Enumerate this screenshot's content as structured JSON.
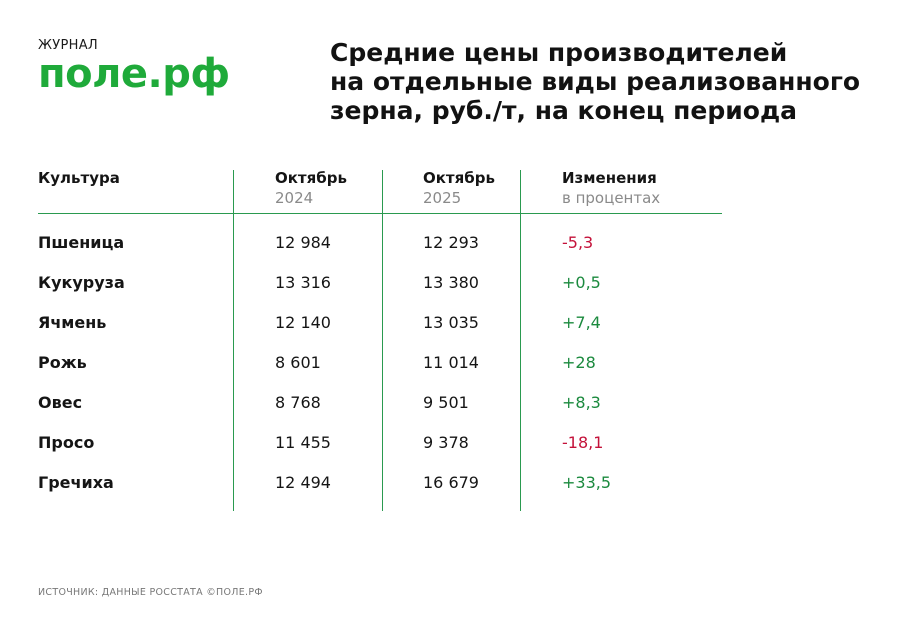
{
  "logo": {
    "small": "ЖУРНАЛ",
    "main": "поле.рф"
  },
  "title": "Средние цены производителей\nна отдельные виды реализованного\nзерна, руб./т, на конец периода",
  "table": {
    "headers": [
      {
        "line1": "Культура",
        "line2": ""
      },
      {
        "line1": "Октябрь",
        "line2": "2024"
      },
      {
        "line1": "Октябрь",
        "line2": "2025"
      },
      {
        "line1": "Изменения",
        "line2": "в процентах"
      }
    ],
    "rows": [
      {
        "crop": "Пшеница",
        "oct2024": "12 984",
        "oct2025": "12 293",
        "change": "-5,3"
      },
      {
        "crop": "Кукуруза",
        "oct2024": "13 316",
        "oct2025": "13 380",
        "change": "+0,5"
      },
      {
        "crop": "Ячмень",
        "oct2024": "12 140",
        "oct2025": "13 035",
        "change": "+7,4"
      },
      {
        "crop": "Рожь",
        "oct2024": "8 601",
        "oct2025": "11 014",
        "change": "+28"
      },
      {
        "crop": "Овес",
        "oct2024": "8 768",
        "oct2025": "9 501",
        "change": "+8,3"
      },
      {
        "crop": "Просо",
        "oct2024": "11 455",
        "oct2025": "9 378",
        "change": "-18,1"
      },
      {
        "crop": "Гречиха",
        "oct2024": "12 494",
        "oct2025": "16 679",
        "change": "+33,5"
      }
    ]
  },
  "source": "ИСТОЧНИК: ДАННЫЕ РОССТАТА ©ПОЛЕ.РФ",
  "colors": {
    "brand_green": "#1faa3a",
    "positive": "#1b8a3e",
    "negative": "#c4123a",
    "divider": "#2a9a4f"
  }
}
